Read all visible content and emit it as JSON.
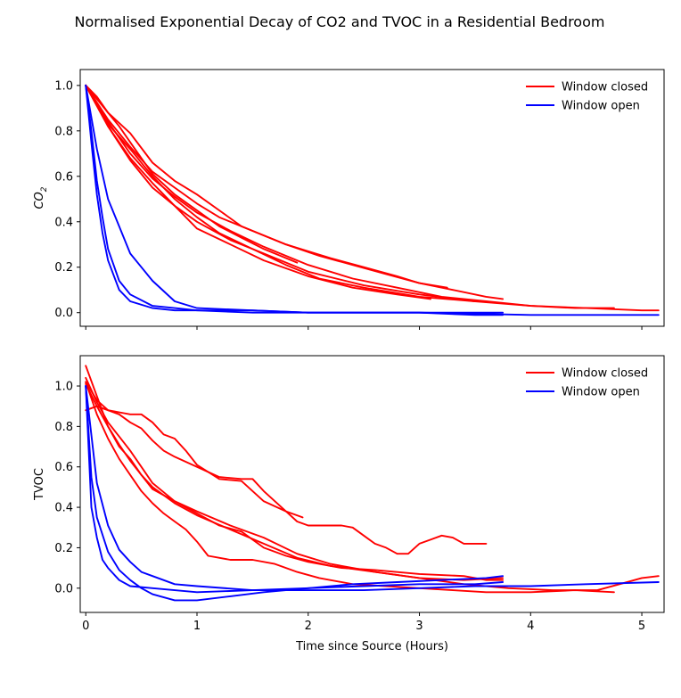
{
  "figure_title": "Normalised Exponential Decay of CO2 and TVOC in a Residential Bedroom",
  "colors": {
    "closed": "#ff0000",
    "open": "#0000ff"
  },
  "chart_data": [
    {
      "type": "line",
      "ylabel_base": "CO",
      "ylabel_sub": "2",
      "xlim": [
        -0.05,
        5.2
      ],
      "ylim": [
        -0.06,
        1.07
      ],
      "yticks": [
        0.0,
        0.2,
        0.4,
        0.6,
        0.8,
        1.0
      ],
      "ytick_labels": [
        "0.0",
        "0.2",
        "0.4",
        "0.6",
        "0.8",
        "1.0"
      ],
      "xticks": [
        0,
        1,
        2,
        3,
        4,
        5
      ],
      "legend": {
        "position": "top-right",
        "entries": [
          {
            "label": "Window closed",
            "color": "#ff0000"
          },
          {
            "label": "Window open",
            "color": "#0000ff"
          }
        ]
      },
      "series": [
        {
          "group": "closed",
          "x": [
            0,
            0.1,
            0.2,
            0.3,
            0.4,
            0.5,
            0.6,
            0.8,
            1.0,
            1.2,
            1.4,
            1.6,
            1.8,
            1.9
          ],
          "y": [
            1.0,
            0.95,
            0.88,
            0.82,
            0.75,
            0.68,
            0.61,
            0.52,
            0.45,
            0.38,
            0.33,
            0.28,
            0.24,
            0.22
          ]
        },
        {
          "group": "closed",
          "x": [
            0,
            0.2,
            0.4,
            0.6,
            0.8,
            1.0,
            1.2,
            1.4,
            1.6,
            1.8,
            2.0,
            2.2,
            2.5,
            2.8,
            3.0,
            3.25
          ],
          "y": [
            1.0,
            0.88,
            0.79,
            0.66,
            0.58,
            0.52,
            0.45,
            0.38,
            0.34,
            0.3,
            0.27,
            0.24,
            0.2,
            0.16,
            0.13,
            0.11
          ]
        },
        {
          "group": "closed",
          "x": [
            0,
            0.2,
            0.4,
            0.6,
            0.8,
            1.0,
            1.2,
            1.5,
            1.8,
            2.1,
            2.4,
            2.7,
            3.0,
            3.3,
            3.6,
            3.75
          ],
          "y": [
            1.0,
            0.85,
            0.73,
            0.62,
            0.55,
            0.48,
            0.42,
            0.36,
            0.3,
            0.25,
            0.21,
            0.17,
            0.13,
            0.1,
            0.07,
            0.06
          ]
        },
        {
          "group": "closed",
          "x": [
            0,
            0.2,
            0.4,
            0.6,
            0.8,
            1.0,
            1.3,
            1.6,
            2.0,
            2.4,
            2.8,
            3.2,
            3.6,
            4.0,
            4.4,
            4.75
          ],
          "y": [
            1.0,
            0.84,
            0.7,
            0.59,
            0.51,
            0.44,
            0.36,
            0.29,
            0.21,
            0.15,
            0.11,
            0.07,
            0.05,
            0.03,
            0.02,
            0.02
          ]
        },
        {
          "group": "closed",
          "x": [
            0,
            0.2,
            0.4,
            0.6,
            0.8,
            1.0,
            1.3,
            1.6,
            2.0,
            2.5,
            3.0,
            3.5,
            4.0,
            4.5,
            5.0,
            5.15
          ],
          "y": [
            1.0,
            0.82,
            0.67,
            0.55,
            0.47,
            0.4,
            0.32,
            0.26,
            0.18,
            0.12,
            0.08,
            0.05,
            0.03,
            0.02,
            0.01,
            0.01
          ]
        },
        {
          "group": "closed",
          "x": [
            0,
            0.2,
            0.4,
            0.6,
            0.8,
            1.0,
            1.2,
            1.5,
            1.8,
            2.1,
            2.5,
            3.0,
            3.5
          ],
          "y": [
            1.0,
            0.83,
            0.72,
            0.6,
            0.5,
            0.42,
            0.35,
            0.28,
            0.21,
            0.15,
            0.11,
            0.07,
            0.05
          ]
        },
        {
          "group": "closed",
          "x": [
            0,
            0.2,
            0.4,
            0.6,
            0.8,
            1.0,
            1.3,
            1.6,
            2.0,
            2.4,
            2.8,
            3.1
          ],
          "y": [
            1.0,
            0.82,
            0.68,
            0.57,
            0.47,
            0.37,
            0.3,
            0.23,
            0.16,
            0.11,
            0.08,
            0.06
          ]
        },
        {
          "group": "open",
          "x": [
            0,
            0.1,
            0.2,
            0.3,
            0.4,
            0.5,
            0.6,
            0.8,
            1.0,
            1.5,
            2.0,
            2.5,
            3.0,
            3.5,
            3.75
          ],
          "y": [
            1.0,
            0.72,
            0.5,
            0.38,
            0.26,
            0.2,
            0.14,
            0.05,
            0.02,
            0.01,
            0.0,
            0.0,
            0.0,
            0.0,
            0.0
          ]
        },
        {
          "group": "open",
          "x": [
            0,
            0.05,
            0.1,
            0.15,
            0.2,
            0.3,
            0.4,
            0.6,
            0.8,
            1.0,
            1.5,
            2.0,
            3.0,
            4.0,
            5.15
          ],
          "y": [
            1.0,
            0.75,
            0.52,
            0.35,
            0.23,
            0.1,
            0.05,
            0.02,
            0.01,
            0.01,
            0.0,
            0.0,
            0.0,
            -0.01,
            -0.01
          ]
        },
        {
          "group": "open",
          "x": [
            0,
            0.05,
            0.1,
            0.15,
            0.2,
            0.3,
            0.4,
            0.6,
            0.8,
            1.0,
            1.5,
            2.0,
            2.5,
            3.0,
            3.5,
            3.75
          ],
          "y": [
            1.0,
            0.8,
            0.58,
            0.42,
            0.28,
            0.14,
            0.08,
            0.03,
            0.02,
            0.01,
            0.01,
            0.0,
            0.0,
            0.0,
            -0.01,
            -0.01
          ]
        }
      ]
    },
    {
      "type": "line",
      "ylabel": "TVOC",
      "xlabel": "Time since Source (Hours)",
      "xlim": [
        -0.05,
        5.2
      ],
      "ylim": [
        -0.12,
        1.15
      ],
      "yticks": [
        0.0,
        0.2,
        0.4,
        0.6,
        0.8,
        1.0
      ],
      "ytick_labels": [
        "0.0",
        "0.2",
        "0.4",
        "0.6",
        "0.8",
        "1.0"
      ],
      "xticks": [
        0,
        1,
        2,
        3,
        4,
        5
      ],
      "xtick_labels": [
        "0",
        "1",
        "2",
        "3",
        "4",
        "5"
      ],
      "legend": {
        "position": "top-right",
        "entries": [
          {
            "label": "Window closed",
            "color": "#ff0000"
          },
          {
            "label": "Window open",
            "color": "#0000ff"
          }
        ]
      },
      "series": [
        {
          "group": "closed",
          "x": [
            0,
            0.1,
            0.2,
            0.3,
            0.4,
            0.5,
            0.6,
            0.7,
            0.8,
            1.0,
            1.2,
            1.4,
            1.5,
            1.6,
            1.8,
            1.9,
            2.0,
            2.3,
            2.4,
            2.5,
            2.6,
            2.7,
            2.8,
            2.9,
            3.0,
            3.1,
            3.2,
            3.3,
            3.4,
            3.6
          ],
          "y": [
            0.88,
            0.9,
            0.88,
            0.86,
            0.82,
            0.79,
            0.73,
            0.68,
            0.65,
            0.6,
            0.55,
            0.54,
            0.54,
            0.48,
            0.38,
            0.33,
            0.31,
            0.31,
            0.3,
            0.26,
            0.22,
            0.2,
            0.17,
            0.17,
            0.22,
            0.24,
            0.26,
            0.25,
            0.22,
            0.22
          ]
        },
        {
          "group": "closed",
          "x": [
            0,
            0.1,
            0.2,
            0.3,
            0.4,
            0.5,
            0.6,
            0.7,
            0.8,
            0.9,
            1.0,
            1.2,
            1.4,
            1.6,
            1.8,
            1.95
          ],
          "y": [
            1.02,
            0.93,
            0.88,
            0.87,
            0.86,
            0.86,
            0.82,
            0.76,
            0.74,
            0.68,
            0.61,
            0.54,
            0.53,
            0.43,
            0.38,
            0.35
          ]
        },
        {
          "group": "closed",
          "x": [
            0,
            0.1,
            0.2,
            0.3,
            0.4,
            0.5,
            0.6,
            0.8,
            1.0,
            1.3,
            1.6,
            1.9,
            2.2,
            2.6,
            3.0,
            3.4,
            3.75
          ],
          "y": [
            1.04,
            0.92,
            0.82,
            0.75,
            0.68,
            0.6,
            0.52,
            0.43,
            0.38,
            0.31,
            0.25,
            0.17,
            0.12,
            0.08,
            0.05,
            0.04,
            0.05
          ]
        },
        {
          "group": "closed",
          "x": [
            0,
            0.1,
            0.2,
            0.3,
            0.4,
            0.5,
            0.6,
            0.8,
            1.0,
            1.3,
            1.6,
            1.9,
            2.2,
            2.6,
            3.0,
            3.4,
            3.8,
            4.2,
            4.6,
            4.8,
            5.0,
            5.15
          ],
          "y": [
            1.1,
            0.95,
            0.8,
            0.7,
            0.64,
            0.56,
            0.5,
            0.42,
            0.36,
            0.29,
            0.22,
            0.15,
            0.11,
            0.08,
            0.05,
            0.02,
            0.0,
            -0.01,
            -0.01,
            0.02,
            0.05,
            0.06
          ]
        },
        {
          "group": "closed",
          "x": [
            0,
            0.1,
            0.2,
            0.3,
            0.4,
            0.5,
            0.6,
            0.8,
            1.0,
            1.2,
            1.4,
            1.6,
            1.8,
            2.0,
            2.3,
            2.6,
            3.0,
            3.4,
            3.6,
            3.75
          ],
          "y": [
            1.01,
            0.9,
            0.8,
            0.71,
            0.63,
            0.56,
            0.49,
            0.43,
            0.37,
            0.31,
            0.28,
            0.2,
            0.16,
            0.13,
            0.1,
            0.09,
            0.07,
            0.06,
            0.04,
            0.04
          ]
        },
        {
          "group": "closed",
          "x": [
            0,
            0.1,
            0.2,
            0.3,
            0.4,
            0.5,
            0.6,
            0.7,
            0.8,
            0.9,
            1.0,
            1.1,
            1.3,
            1.5,
            1.7,
            1.9,
            2.1,
            2.4,
            2.7,
            3.0,
            3.3,
            3.6,
            4.0,
            4.4,
            4.75
          ],
          "y": [
            1.02,
            0.86,
            0.74,
            0.64,
            0.56,
            0.48,
            0.42,
            0.37,
            0.33,
            0.29,
            0.23,
            0.16,
            0.14,
            0.14,
            0.12,
            0.08,
            0.05,
            0.02,
            0.01,
            0.0,
            -0.01,
            -0.02,
            -0.02,
            -0.01,
            -0.02
          ]
        },
        {
          "group": "open",
          "x": [
            0,
            0.1,
            0.2,
            0.3,
            0.4,
            0.5,
            0.6,
            0.8,
            1.0,
            1.5,
            2.0,
            2.5,
            3.0,
            3.5,
            4.0,
            4.5,
            5.15
          ],
          "y": [
            1.0,
            0.52,
            0.31,
            0.19,
            0.13,
            0.08,
            0.06,
            0.02,
            0.01,
            -0.01,
            -0.01,
            -0.01,
            0.0,
            0.01,
            0.01,
            0.02,
            0.03
          ]
        },
        {
          "group": "open",
          "x": [
            0,
            0.05,
            0.1,
            0.15,
            0.2,
            0.3,
            0.4,
            0.6,
            0.8,
            1.0,
            1.5,
            2.0,
            2.5,
            3.0,
            3.5,
            3.75
          ],
          "y": [
            1.0,
            0.4,
            0.25,
            0.14,
            0.1,
            0.04,
            0.01,
            0.0,
            -0.01,
            -0.02,
            -0.01,
            0.0,
            0.01,
            0.02,
            0.02,
            0.03
          ]
        },
        {
          "group": "open",
          "x": [
            0,
            0.05,
            0.1,
            0.2,
            0.3,
            0.4,
            0.5,
            0.6,
            0.8,
            1.0,
            1.3,
            1.6,
            2.0,
            2.4,
            2.8,
            3.2,
            3.6,
            3.75
          ],
          "y": [
            1.0,
            0.55,
            0.35,
            0.18,
            0.09,
            0.04,
            0.0,
            -0.03,
            -0.06,
            -0.06,
            -0.04,
            -0.02,
            0.0,
            0.02,
            0.03,
            0.04,
            0.05,
            0.06
          ]
        }
      ]
    }
  ]
}
